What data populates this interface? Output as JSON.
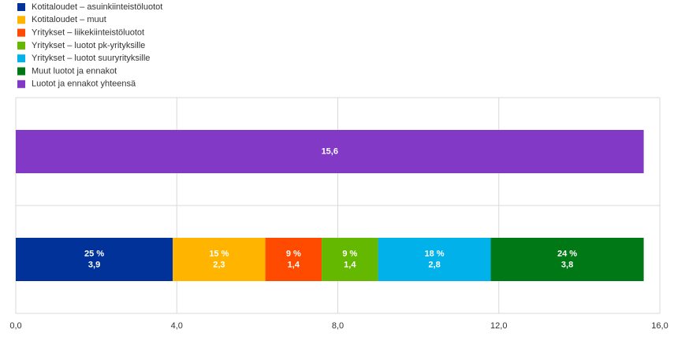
{
  "chart_data": {
    "type": "stacked-bar-horizontal",
    "categories": [
      null,
      null
    ],
    "series": [
      {
        "name": "Kotitaloudet – asuinkiinteistöluotot",
        "color": "#003299",
        "values": [
          null,
          3.9
        ],
        "value_labels": [
          null,
          "3,9"
        ],
        "share_labels": [
          null,
          "25 %"
        ]
      },
      {
        "name": "Kotitaloudet – muut",
        "color": "#ffb400",
        "values": [
          null,
          2.3
        ],
        "value_labels": [
          null,
          "2,3"
        ],
        "share_labels": [
          null,
          "15 %"
        ]
      },
      {
        "name": "Yritykset – liikekiinteistöluotot",
        "color": "#ff4b00",
        "values": [
          null,
          1.4
        ],
        "value_labels": [
          null,
          "1,4"
        ],
        "share_labels": [
          null,
          "9 %"
        ]
      },
      {
        "name": "Yritykset – luotot pk-yrityksille",
        "color": "#65b800",
        "values": [
          null,
          1.4
        ],
        "value_labels": [
          null,
          "1,4"
        ],
        "share_labels": [
          null,
          "9 %"
        ]
      },
      {
        "name": "Yritykset – luotot suuryrityksille",
        "color": "#00b1ea",
        "values": [
          null,
          2.8
        ],
        "value_labels": [
          null,
          "2,8"
        ],
        "share_labels": [
          null,
          "18 %"
        ]
      },
      {
        "name": "Muut luotot ja ennakot",
        "color": "#007816",
        "values": [
          null,
          3.8
        ],
        "value_labels": [
          null,
          "3,8"
        ],
        "share_labels": [
          null,
          "24 %"
        ]
      },
      {
        "name": "Luotot ja ennakot yhteensä",
        "color": "#8139c6",
        "values": [
          15.6,
          null
        ],
        "value_labels": [
          "15,6",
          null
        ],
        "share_labels": [
          null,
          null
        ]
      }
    ],
    "xlim": [
      0,
      16
    ],
    "xticks": [
      {
        "value": 0,
        "label": "0,0"
      },
      {
        "value": 4,
        "label": "4,0"
      },
      {
        "value": 8,
        "label": "8,0"
      },
      {
        "value": 12,
        "label": "12,0"
      },
      {
        "value": 16,
        "label": "16,0"
      }
    ],
    "grid": true,
    "legend": "top-left"
  }
}
